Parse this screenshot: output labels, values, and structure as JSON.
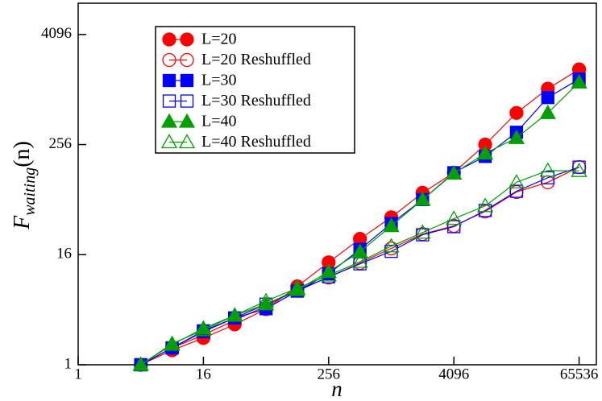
{
  "chart_data": {
    "type": "line",
    "x_label": "n",
    "y_label": "F",
    "y_label_subscript": "waiting",
    "y_label_suffix": "(n)",
    "log_x": true,
    "log_y": true,
    "log_base": 2,
    "xlim": [
      1,
      96000
    ],
    "ylim": [
      1,
      9000
    ],
    "xticks": [
      1,
      16,
      256,
      4096,
      65536
    ],
    "yticks": [
      1,
      16,
      256,
      4096
    ],
    "legend": "upper-left",
    "x": [
      4,
      8,
      16,
      32,
      64,
      128,
      256,
      512,
      1024,
      2048,
      4096,
      8192,
      16384,
      32768,
      65536
    ],
    "series": [
      {
        "name": "L=20",
        "color": "#ff0000",
        "marker": "circle",
        "filled": true,
        "values": [
          1,
          1.44,
          1.96,
          2.76,
          4.06,
          7.2,
          13.2,
          23.8,
          41,
          76,
          126,
          256,
          568,
          1045,
          1700
        ]
      },
      {
        "name": "L=20 Reshuffled",
        "color": "#ff0000",
        "marker": "circle",
        "filled": false,
        "values": [
          1,
          1.53,
          2.12,
          3.06,
          4.4,
          6.6,
          9,
          13,
          18.7,
          26.9,
          33,
          47.5,
          77.5,
          99,
          145
        ]
      },
      {
        "name": "L=30",
        "color": "#0000ff",
        "marker": "square",
        "filled": true,
        "values": [
          1,
          1.53,
          2.3,
          3.25,
          4.1,
          6.4,
          9.9,
          18.3,
          35,
          64,
          126,
          190,
          349,
          836,
          1333
        ]
      },
      {
        "name": "L=30 Reshuffled",
        "color": "#0000ff",
        "marker": "square",
        "filled": false,
        "values": [
          1,
          1.53,
          2.35,
          3.25,
          4.6,
          6.4,
          9.15,
          12.7,
          17.4,
          26.4,
          32.4,
          48.7,
          79,
          111,
          145
        ]
      },
      {
        "name": "L=40",
        "color": "#00a000",
        "marker": "triangle",
        "filled": true,
        "values": [
          1,
          1.66,
          2.5,
          3.46,
          4.6,
          6.6,
          10.4,
          17.2,
          33,
          64,
          124,
          205,
          303,
          568,
          1228
        ]
      },
      {
        "name": "L=40 Reshuffled",
        "color": "#00a000",
        "marker": "triangle",
        "filled": false,
        "values": [
          1,
          1.7,
          2.4,
          3.46,
          4.98,
          6.9,
          9.5,
          13.4,
          19.8,
          27.9,
          39.6,
          54.6,
          99,
          133,
          132
        ]
      }
    ]
  }
}
